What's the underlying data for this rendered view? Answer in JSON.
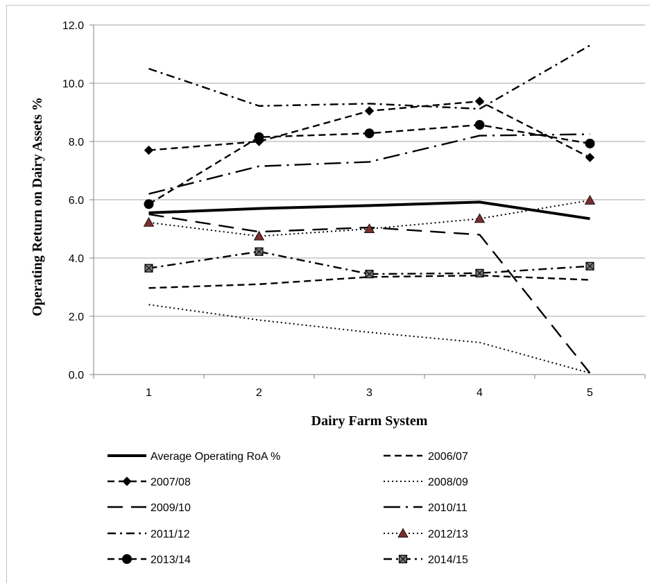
{
  "chart_data": {
    "type": "line",
    "title": "",
    "xlabel": "Dairy Farm System",
    "ylabel": "Operating Return on Dairy Assets %",
    "x": [
      1,
      2,
      3,
      4,
      5
    ],
    "x_ticks": [
      "1",
      "2",
      "3",
      "4",
      "5"
    ],
    "ylim": [
      0,
      12
    ],
    "y_ticks": [
      "0.0",
      "2.0",
      "4.0",
      "6.0",
      "8.0",
      "10.0",
      "12.0"
    ],
    "grid": "horizontal",
    "legend_position": "bottom",
    "series": [
      {
        "name": "Average Operating RoA %",
        "values": [
          5.55,
          5.7,
          5.8,
          5.92,
          5.35
        ],
        "dash": "solid-thick",
        "marker": "none",
        "color": "#000000"
      },
      {
        "name": "2006/07",
        "values": [
          2.97,
          3.1,
          3.35,
          3.4,
          3.25
        ],
        "dash": "dash",
        "marker": "none",
        "color": "#000000"
      },
      {
        "name": "2007/08",
        "values": [
          7.7,
          8.0,
          9.05,
          9.38,
          7.45
        ],
        "dash": "dash",
        "marker": "diamond",
        "color": "#000000"
      },
      {
        "name": "2008/09",
        "values": [
          2.4,
          1.87,
          1.45,
          1.1,
          0.05
        ],
        "dash": "dot",
        "marker": "none",
        "color": "#000000"
      },
      {
        "name": "2009/10",
        "values": [
          5.5,
          4.9,
          5.05,
          4.8,
          0.05
        ],
        "dash": "longdash",
        "marker": "none",
        "color": "#000000"
      },
      {
        "name": "2010/11",
        "values": [
          6.2,
          7.15,
          7.3,
          8.2,
          8.25
        ],
        "dash": "longdashdot",
        "marker": "none",
        "color": "#000000"
      },
      {
        "name": "2011/12",
        "values": [
          10.5,
          9.22,
          9.3,
          9.12,
          11.3
        ],
        "dash": "dashdot",
        "marker": "none",
        "color": "#000000"
      },
      {
        "name": "2012/13",
        "values": [
          5.22,
          4.75,
          5.0,
          5.35,
          5.98
        ],
        "dash": "dot",
        "marker": "triangle",
        "color": "#000000",
        "marker_color": "#7b2d2d"
      },
      {
        "name": "2013/14",
        "values": [
          5.85,
          8.15,
          8.28,
          8.57,
          7.93
        ],
        "dash": "dash",
        "marker": "circle",
        "color": "#000000"
      },
      {
        "name": "2014/15",
        "values": [
          3.65,
          4.22,
          3.45,
          3.48,
          3.72
        ],
        "dash": "dashdot",
        "marker": "square",
        "color": "#000000"
      }
    ]
  }
}
